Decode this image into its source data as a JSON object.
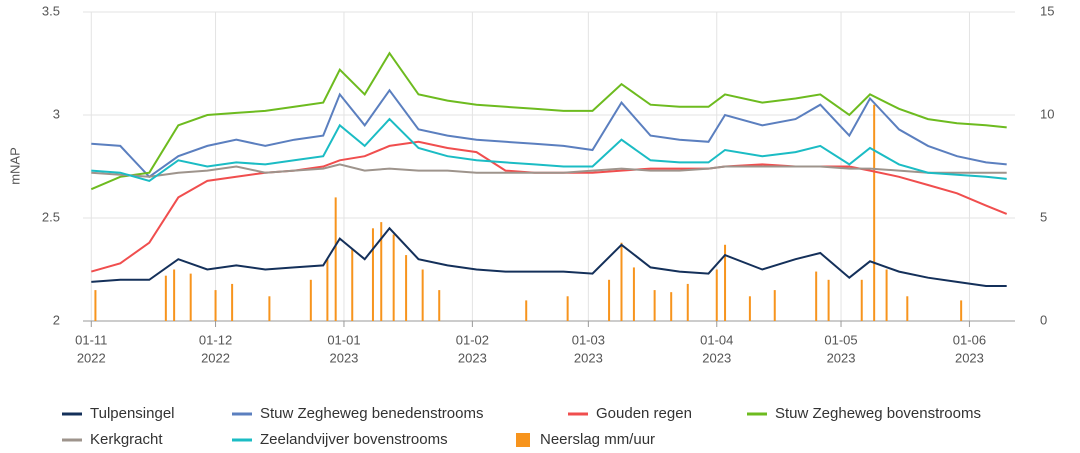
{
  "chart_data": {
    "type": "line",
    "y_label": "mNAP",
    "xlim": [
      "2022-10-30",
      "2023-06-12"
    ],
    "xticks": [
      {
        "value": "2022-11-01",
        "label": [
          "01-11",
          "2022"
        ]
      },
      {
        "value": "2022-12-01",
        "label": [
          "01-12",
          "2022"
        ]
      },
      {
        "value": "2023-01-01",
        "label": [
          "01-01",
          "2023"
        ]
      },
      {
        "value": "2023-02-01",
        "label": [
          "01-02",
          "2023"
        ]
      },
      {
        "value": "2023-03-01",
        "label": [
          "01-03",
          "2023"
        ]
      },
      {
        "value": "2023-04-01",
        "label": [
          "01-04",
          "2023"
        ]
      },
      {
        "value": "2023-05-01",
        "label": [
          "01-05",
          "2023"
        ]
      },
      {
        "value": "2023-06-01",
        "label": [
          "01-06",
          "2023"
        ]
      }
    ],
    "ylim": [
      2,
      3.5
    ],
    "yticks": [
      2,
      2.5,
      3,
      3.5
    ],
    "y2lim": [
      0,
      15
    ],
    "y2ticks": [
      0,
      5,
      10,
      15
    ],
    "grid": true,
    "x": [
      "2022-11-01",
      "2022-11-08",
      "2022-11-15",
      "2022-11-22",
      "2022-11-29",
      "2022-12-06",
      "2022-12-13",
      "2022-12-20",
      "2022-12-27",
      "2022-12-31",
      "2023-01-06",
      "2023-01-12",
      "2023-01-19",
      "2023-01-26",
      "2023-02-02",
      "2023-02-09",
      "2023-02-16",
      "2023-02-23",
      "2023-03-02",
      "2023-03-09",
      "2023-03-16",
      "2023-03-23",
      "2023-03-30",
      "2023-04-03",
      "2023-04-12",
      "2023-04-20",
      "2023-04-26",
      "2023-05-03",
      "2023-05-08",
      "2023-05-15",
      "2023-05-22",
      "2023-05-29",
      "2023-06-05",
      "2023-06-10"
    ],
    "series": [
      {
        "name": "Tulpensingel",
        "color": "#14305a",
        "values": [
          2.19,
          2.2,
          2.2,
          2.3,
          2.25,
          2.27,
          2.25,
          2.26,
          2.27,
          2.4,
          2.3,
          2.45,
          2.3,
          2.27,
          2.25,
          2.24,
          2.24,
          2.24,
          2.23,
          2.37,
          2.26,
          2.24,
          2.23,
          2.32,
          2.25,
          2.3,
          2.33,
          2.21,
          2.29,
          2.24,
          2.21,
          2.19,
          2.17,
          2.17
        ]
      },
      {
        "name": "Stuw Zegheweg benedenstrooms",
        "color": "#5b7fbf",
        "values": [
          2.86,
          2.85,
          2.7,
          2.8,
          2.85,
          2.88,
          2.85,
          2.88,
          2.9,
          3.1,
          2.95,
          3.12,
          2.93,
          2.9,
          2.88,
          2.87,
          2.86,
          2.85,
          2.83,
          3.06,
          2.9,
          2.88,
          2.87,
          3.0,
          2.95,
          2.98,
          3.05,
          2.9,
          3.08,
          2.93,
          2.85,
          2.8,
          2.77,
          2.76
        ]
      },
      {
        "name": "Gouden regen",
        "color": "#f04e4e",
        "values": [
          2.24,
          2.28,
          2.38,
          2.6,
          2.68,
          2.7,
          2.72,
          2.73,
          2.75,
          2.78,
          2.8,
          2.85,
          2.87,
          2.84,
          2.82,
          2.73,
          2.72,
          2.72,
          2.72,
          2.73,
          2.74,
          2.74,
          2.74,
          2.75,
          2.76,
          2.75,
          2.75,
          2.75,
          2.73,
          2.7,
          2.66,
          2.62,
          2.56,
          2.52
        ]
      },
      {
        "name": "Stuw Zegheweg bovenstrooms",
        "color": "#6dbb1f",
        "values": [
          2.64,
          2.7,
          2.72,
          2.95,
          3.0,
          3.01,
          3.02,
          3.04,
          3.06,
          3.22,
          3.1,
          3.3,
          3.1,
          3.07,
          3.05,
          3.04,
          3.03,
          3.02,
          3.02,
          3.15,
          3.05,
          3.04,
          3.04,
          3.1,
          3.06,
          3.08,
          3.1,
          3.0,
          3.1,
          3.03,
          2.98,
          2.96,
          2.95,
          2.94
        ]
      },
      {
        "name": "Kerkgracht",
        "color": "#9e948c",
        "values": [
          2.72,
          2.71,
          2.7,
          2.72,
          2.73,
          2.75,
          2.72,
          2.73,
          2.74,
          2.76,
          2.73,
          2.74,
          2.73,
          2.73,
          2.72,
          2.72,
          2.72,
          2.72,
          2.73,
          2.74,
          2.73,
          2.73,
          2.74,
          2.75,
          2.75,
          2.75,
          2.75,
          2.74,
          2.74,
          2.73,
          2.72,
          2.72,
          2.72,
          2.72
        ]
      },
      {
        "name": "Zeelandvijver bovenstrooms",
        "color": "#1bbcc4",
        "values": [
          2.73,
          2.72,
          2.68,
          2.78,
          2.75,
          2.77,
          2.76,
          2.78,
          2.8,
          2.95,
          2.85,
          2.98,
          2.84,
          2.8,
          2.78,
          2.77,
          2.76,
          2.75,
          2.75,
          2.88,
          2.78,
          2.77,
          2.77,
          2.83,
          2.8,
          2.82,
          2.85,
          2.76,
          2.84,
          2.76,
          2.72,
          2.71,
          2.7,
          2.69
        ]
      },
      {
        "name": "Neerslag mm/uur",
        "color": "#f7941d",
        "type": "bar",
        "axis": "y2",
        "x": [
          "2022-11-02",
          "2022-11-19",
          "2022-11-21",
          "2022-11-25",
          "2022-12-01",
          "2022-12-05",
          "2022-12-14",
          "2022-12-24",
          "2022-12-28",
          "2022-12-30",
          "2023-01-03",
          "2023-01-08",
          "2023-01-10",
          "2023-01-13",
          "2023-01-16",
          "2023-01-20",
          "2023-01-24",
          "2023-02-14",
          "2023-02-24",
          "2023-03-06",
          "2023-03-09",
          "2023-03-12",
          "2023-03-17",
          "2023-03-21",
          "2023-03-25",
          "2023-04-01",
          "2023-04-03",
          "2023-04-09",
          "2023-04-15",
          "2023-04-25",
          "2023-04-28",
          "2023-05-06",
          "2023-05-09",
          "2023-05-12",
          "2023-05-17",
          "2023-05-30"
        ],
        "values": [
          1.5,
          2.2,
          2.5,
          2.3,
          1.5,
          1.8,
          1.2,
          2.0,
          3.0,
          6,
          3.5,
          4.5,
          4.8,
          4.2,
          3.2,
          2.5,
          1.5,
          1.0,
          1.2,
          2.0,
          3.8,
          2.6,
          1.5,
          1.4,
          1.8,
          2.5,
          3.7,
          1.2,
          1.5,
          2.4,
          2.0,
          2.0,
          10.5,
          2.5,
          1.2,
          1.0
        ]
      }
    ]
  }
}
